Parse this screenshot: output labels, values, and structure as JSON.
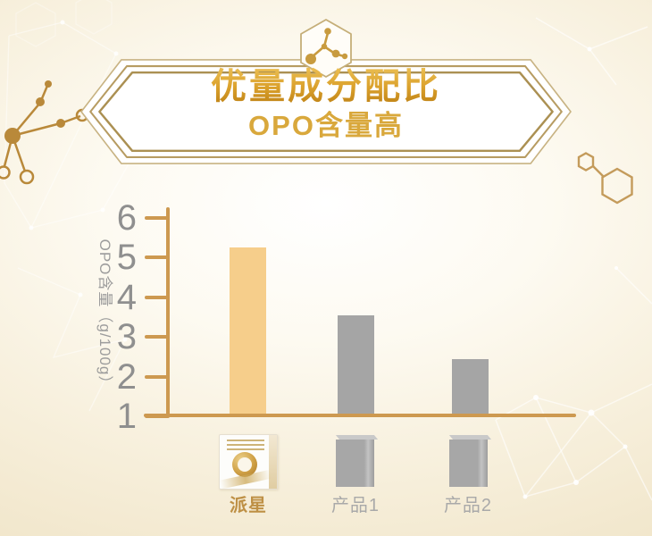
{
  "header": {
    "title": "优量成分配比",
    "subtitle": "OPO含量高",
    "badge_icon": "molecule-icon"
  },
  "chart_data": {
    "type": "bar",
    "title": "",
    "xlabel": "",
    "ylabel": "OPO含量（g/100g）",
    "categories": [
      "派星",
      "产品1",
      "产品2"
    ],
    "values": [
      5.2,
      3.5,
      2.4
    ],
    "yticks": [
      1,
      2,
      3,
      4,
      5,
      6
    ],
    "ylim": [
      1,
      6.3
    ],
    "grid": false,
    "legend": "none",
    "bar_colors": [
      "#f6ce8b",
      "#a5a5a5",
      "#a5a5a5"
    ],
    "highlight_index": 0
  },
  "products": [
    {
      "label": "派星",
      "style": "branded-gold-box"
    },
    {
      "label": "产品1",
      "style": "generic-gray-box"
    },
    {
      "label": "产品2",
      "style": "generic-gray-box"
    }
  ],
  "colors": {
    "axis": "#cd9950",
    "tick_text": "#8f8f8f",
    "title_gold": "#d0941f",
    "subtitle_gold": "#d9a83c",
    "highlight_bar": "#f6ce8b",
    "comparison_bar": "#a5a5a5",
    "brand_label": "#be9045",
    "generic_label": "#a9a9a9",
    "frame_gold": "#b79c62",
    "background_cream": "#f3e9d0"
  }
}
